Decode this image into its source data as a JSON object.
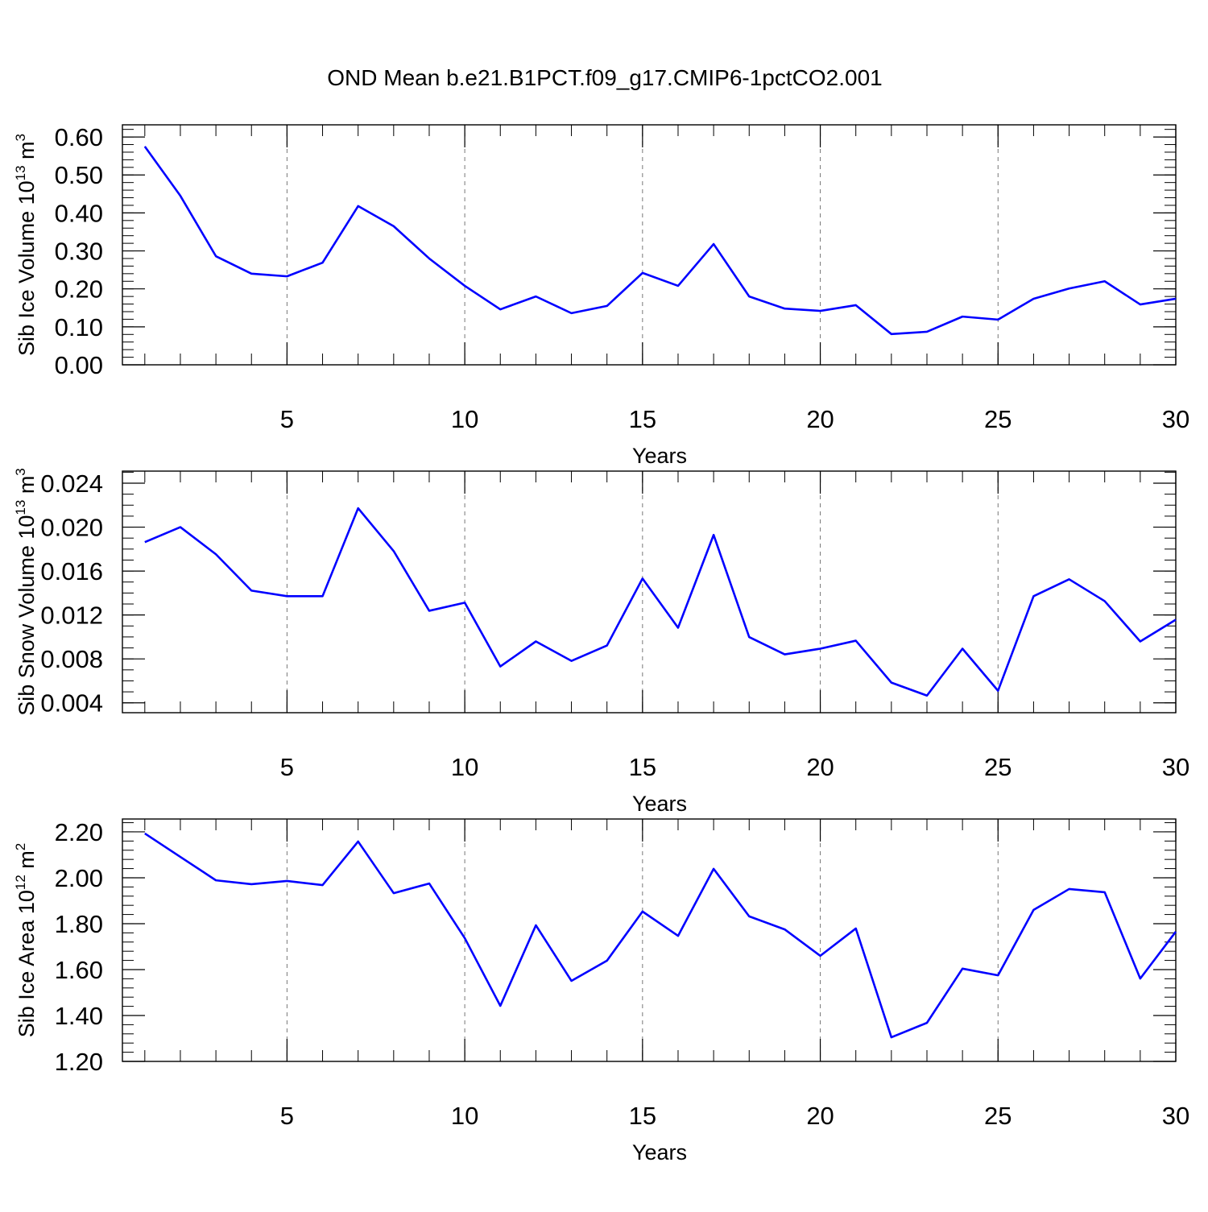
{
  "title": "OND Mean b.e21.B1PCT.f09_g17.CMIP6-1pctCO2.001",
  "chart_data": [
    {
      "type": "line",
      "color": "#0000ff",
      "xgrid": true,
      "x_label": "Years",
      "y_label": [
        "Sib Ice Volume 10",
        "13",
        " m",
        "3"
      ],
      "x": [
        1,
        2,
        3,
        4,
        5,
        6,
        7,
        8,
        9,
        10,
        11,
        12,
        13,
        14,
        15,
        16,
        17,
        18,
        19,
        20,
        21,
        22,
        23,
        24,
        25,
        26,
        27,
        28,
        29,
        30
      ],
      "values": [
        0.575,
        0.445,
        0.286,
        0.24,
        0.233,
        0.269,
        0.418,
        0.365,
        0.28,
        0.208,
        0.146,
        0.18,
        0.136,
        0.155,
        0.242,
        0.208,
        0.318,
        0.18,
        0.148,
        0.142,
        0.157,
        0.081,
        0.087,
        0.127,
        0.119,
        0.174,
        0.201,
        0.22,
        0.159,
        0.174
      ],
      "xlim": [
        0.37,
        30
      ],
      "xticks": [
        5,
        10,
        15,
        20,
        25,
        30
      ],
      "xminor_step": 1,
      "ylim": [
        0,
        0.632
      ],
      "yticks": [
        {
          "value": 0,
          "label": "0.00"
        },
        {
          "value": 0.1,
          "label": "0.10"
        },
        {
          "value": 0.2,
          "label": "0.20"
        },
        {
          "value": 0.3,
          "label": "0.30"
        },
        {
          "value": 0.4,
          "label": "0.40"
        },
        {
          "value": 0.5,
          "label": "0.50"
        },
        {
          "value": 0.6,
          "label": "0.60"
        }
      ],
      "yminor_step": 0.02
    },
    {
      "type": "line",
      "color": "#0000ff",
      "xgrid": true,
      "x_label": "Years",
      "y_label": [
        "Sib Snow Volume 10",
        "13",
        " m",
        "3"
      ],
      "x": [
        1,
        2,
        3,
        4,
        5,
        6,
        7,
        8,
        9,
        10,
        11,
        12,
        13,
        14,
        15,
        16,
        17,
        18,
        19,
        20,
        21,
        22,
        23,
        24,
        25,
        26,
        27,
        28,
        29,
        30
      ],
      "values": [
        0.01863,
        0.02,
        0.01753,
        0.01422,
        0.01371,
        0.01371,
        0.02172,
        0.01782,
        0.01238,
        0.01312,
        0.00731,
        0.00959,
        0.00782,
        0.00922,
        0.01532,
        0.01084,
        0.01929,
        0.00999,
        0.00841,
        0.00893,
        0.00966,
        0.00584,
        0.00466,
        0.00893,
        0.0051,
        0.01371,
        0.01525,
        0.01326,
        0.00959,
        0.01157
      ],
      "xlim": [
        0.37,
        30
      ],
      "xticks": [
        5,
        10,
        15,
        20,
        25,
        30
      ],
      "xminor_step": 1,
      "ylim": [
        0.0031,
        0.0251
      ],
      "yticks": [
        0.004,
        0.008,
        0.012,
        0.016,
        {
          "value": 0.02,
          "label": "0.020"
        },
        0.024
      ],
      "yminor_step": 0.001
    },
    {
      "type": "line",
      "color": "#0000ff",
      "xgrid": true,
      "x_label": "Years",
      "y_label": [
        "Sib Ice Area 10",
        "12",
        " m",
        "2"
      ],
      "x": [
        1,
        2,
        3,
        4,
        5,
        6,
        7,
        8,
        9,
        10,
        11,
        12,
        13,
        14,
        15,
        16,
        17,
        18,
        19,
        20,
        21,
        22,
        23,
        24,
        25,
        26,
        27,
        28,
        29,
        30
      ],
      "values": [
        2.193,
        2.091,
        1.989,
        1.972,
        1.986,
        1.968,
        2.158,
        1.933,
        1.975,
        1.737,
        1.442,
        1.793,
        1.551,
        1.639,
        1.853,
        1.747,
        2.039,
        1.832,
        1.775,
        1.66,
        1.779,
        1.305,
        1.368,
        1.604,
        1.575,
        1.86,
        1.951,
        1.937,
        1.561,
        1.765
      ],
      "xlim": [
        0.37,
        30
      ],
      "xticks": [
        5,
        10,
        15,
        20,
        25,
        30
      ],
      "xminor_step": 1,
      "ylim": [
        1.2,
        2.256
      ],
      "yticks": [
        {
          "value": 1.2,
          "label": "1.20"
        },
        {
          "value": 1.4,
          "label": "1.40"
        },
        {
          "value": 1.6,
          "label": "1.60"
        },
        {
          "value": 1.8,
          "label": "1.80"
        },
        {
          "value": 2.0,
          "label": "2.00"
        },
        {
          "value": 2.2,
          "label": "2.20"
        }
      ],
      "yminor_step": 0.04
    }
  ]
}
